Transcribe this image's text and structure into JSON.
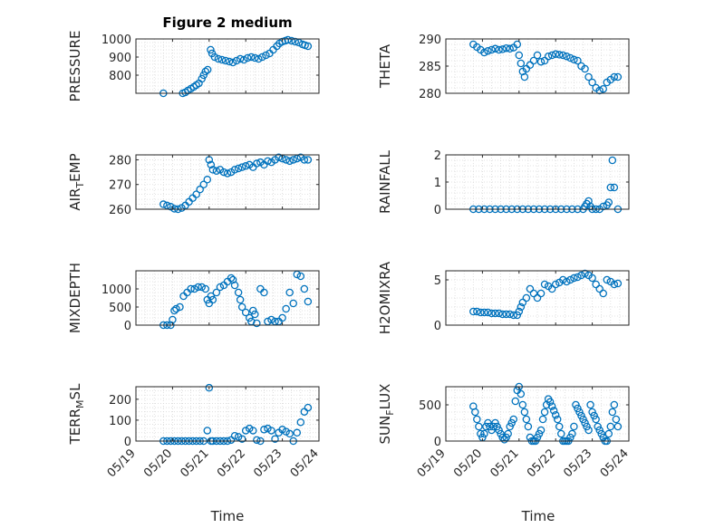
{
  "chart_data": {
    "title": "Figure 2 medium",
    "type": "scatter",
    "marker": "open-circle",
    "series_color": "#0072BD",
    "grid": "minor-dotted",
    "x_tick_labels": [
      "05/19",
      "05/20",
      "05/21",
      "05/22",
      "05/23",
      "05/24"
    ],
    "x_ticks_days": [
      0,
      1,
      2,
      3,
      4,
      5
    ],
    "xlabel": "Time",
    "panels": [
      {
        "id": "pressure",
        "ylabel": "PRESSURE",
        "ylim": [
          700,
          1000
        ],
        "yticks": [
          800,
          900,
          1000
        ],
        "x": [
          0.75,
          0.82,
          0.9,
          0.98,
          1.05,
          1.12,
          1.2,
          1.28,
          1.35,
          1.42,
          1.5,
          1.58,
          1.65,
          1.72,
          1.8,
          1.85,
          1.9,
          1.96,
          2.04,
          2.08,
          2.15,
          2.25,
          2.35,
          2.45,
          2.55,
          2.65,
          2.75,
          2.85,
          2.95,
          3.05,
          3.15,
          3.25,
          3.35,
          3.45,
          3.55,
          3.65,
          3.75,
          3.85,
          3.92,
          4.0,
          4.08,
          4.15,
          4.25,
          4.35,
          4.45,
          4.55,
          4.62,
          4.7
        ],
        "y": [
          700,
          698,
          697,
          695,
          693,
          692,
          693,
          700,
          705,
          715,
          725,
          735,
          745,
          755,
          780,
          800,
          820,
          830,
          940,
          920,
          900,
          890,
          885,
          880,
          875,
          870,
          880,
          890,
          885,
          895,
          900,
          895,
          890,
          900,
          910,
          920,
          940,
          960,
          975,
          985,
          990,
          995,
          990,
          985,
          980,
          970,
          965,
          960
        ]
      },
      {
        "id": "theta",
        "ylabel": "THETA",
        "ylim": [
          280,
          290
        ],
        "yticks": [
          280,
          285,
          290
        ],
        "x": [
          0.75,
          0.85,
          0.95,
          1.05,
          1.15,
          1.25,
          1.35,
          1.45,
          1.55,
          1.65,
          1.75,
          1.85,
          1.95,
          2.0,
          2.05,
          2.1,
          2.15,
          2.2,
          2.3,
          2.4,
          2.5,
          2.6,
          2.7,
          2.8,
          2.9,
          3.0,
          3.1,
          3.2,
          3.3,
          3.4,
          3.5,
          3.6,
          3.7,
          3.8,
          3.9,
          4.0,
          4.1,
          4.2,
          4.3,
          4.4,
          4.5,
          4.6,
          4.7
        ],
        "y": [
          289,
          288.5,
          288,
          287.5,
          287.8,
          288,
          288.2,
          288,
          288.1,
          288.3,
          288.2,
          288.4,
          289,
          287,
          285.5,
          284,
          283,
          284.5,
          285.2,
          286,
          287,
          285.8,
          286,
          286.8,
          287,
          287.2,
          287.1,
          287,
          286.8,
          286.5,
          286.2,
          286,
          285,
          284.5,
          283,
          282,
          281,
          280.5,
          280.8,
          282,
          282.5,
          283,
          283
        ]
      },
      {
        "id": "air_temp",
        "ylabel_main": "AIR",
        "ylabel_sub": "T",
        "ylabel_tail": "EMP",
        "ylim": [
          260,
          282
        ],
        "yticks": [
          260,
          270,
          280
        ],
        "x": [
          0.75,
          0.85,
          0.95,
          1.05,
          1.15,
          1.25,
          1.35,
          1.45,
          1.55,
          1.65,
          1.75,
          1.85,
          1.95,
          2.0,
          2.05,
          2.1,
          2.2,
          2.3,
          2.4,
          2.5,
          2.6,
          2.7,
          2.8,
          2.9,
          3.0,
          3.1,
          3.2,
          3.3,
          3.4,
          3.5,
          3.6,
          3.7,
          3.8,
          3.9,
          4.0,
          4.1,
          4.2,
          4.3,
          4.4,
          4.5,
          4.6,
          4.7
        ],
        "y": [
          262,
          261.5,
          261,
          260.2,
          260,
          260.5,
          261.5,
          263,
          264.5,
          266,
          268,
          270,
          272,
          280,
          278,
          276,
          275.5,
          276,
          275,
          274.5,
          275,
          276,
          276.5,
          277,
          277.5,
          278,
          277,
          278.5,
          279,
          278,
          279.5,
          279,
          280,
          281,
          280.5,
          280,
          279.5,
          280,
          280.5,
          281,
          280,
          280
        ]
      },
      {
        "id": "rainfall",
        "ylabel": "RAINFALL",
        "ylim": [
          0,
          2
        ],
        "yticks": [
          0,
          1,
          2
        ],
        "x": [
          0.75,
          0.9,
          1.05,
          1.2,
          1.35,
          1.5,
          1.65,
          1.8,
          1.95,
          2.1,
          2.25,
          2.4,
          2.55,
          2.7,
          2.85,
          3.0,
          3.15,
          3.3,
          3.45,
          3.6,
          3.75,
          3.8,
          3.85,
          3.9,
          3.95,
          4.0,
          4.1,
          4.2,
          4.3,
          4.4,
          4.45,
          4.5,
          4.55,
          4.6,
          4.7
        ],
        "y": [
          0,
          0,
          0,
          0,
          0,
          0,
          0,
          0,
          0,
          0,
          0,
          0,
          0,
          0,
          0,
          0,
          0,
          0,
          0,
          0,
          0,
          0.1,
          0.2,
          0.3,
          0.1,
          0,
          0,
          0,
          0.1,
          0.15,
          0.25,
          0.8,
          1.8,
          0.8,
          0
        ]
      },
      {
        "id": "mixdepth",
        "ylabel": "MIXDEPTH",
        "ylim": [
          0,
          1500
        ],
        "yticks": [
          0,
          500,
          1000
        ],
        "x": [
          0.75,
          0.85,
          0.95,
          1.0,
          1.05,
          1.1,
          1.2,
          1.3,
          1.4,
          1.5,
          1.6,
          1.7,
          1.8,
          1.9,
          1.95,
          2.0,
          2.05,
          2.1,
          2.2,
          2.3,
          2.4,
          2.5,
          2.6,
          2.65,
          2.7,
          2.8,
          2.85,
          2.9,
          3.0,
          3.1,
          3.15,
          3.2,
          3.25,
          3.3,
          3.4,
          3.5,
          3.6,
          3.7,
          3.8,
          3.9,
          4.0,
          4.1,
          4.2,
          4.3,
          4.4,
          4.5,
          4.6,
          4.7
        ],
        "y": [
          0,
          0,
          0,
          150,
          400,
          450,
          500,
          800,
          900,
          1000,
          1000,
          1050,
          1050,
          1000,
          700,
          600,
          800,
          700,
          900,
          1050,
          1100,
          1200,
          1300,
          1250,
          1100,
          900,
          700,
          500,
          350,
          200,
          100,
          400,
          300,
          50,
          1000,
          900,
          100,
          150,
          100,
          100,
          200,
          450,
          900,
          600,
          1400,
          1350,
          1000,
          650
        ]
      },
      {
        "id": "h2omixra",
        "ylabel": "H2OMIXRA",
        "ylim": [
          0,
          6
        ],
        "yticks": [
          0,
          5
        ],
        "x": [
          0.75,
          0.85,
          0.95,
          1.05,
          1.15,
          1.25,
          1.35,
          1.45,
          1.55,
          1.65,
          1.75,
          1.85,
          1.95,
          2.0,
          2.05,
          2.1,
          2.2,
          2.3,
          2.4,
          2.5,
          2.6,
          2.7,
          2.8,
          2.9,
          3.0,
          3.1,
          3.2,
          3.3,
          3.4,
          3.5,
          3.6,
          3.7,
          3.8,
          3.9,
          4.0,
          4.1,
          4.2,
          4.3,
          4.4,
          4.5,
          4.6,
          4.7
        ],
        "y": [
          1.5,
          1.5,
          1.4,
          1.4,
          1.4,
          1.3,
          1.3,
          1.3,
          1.2,
          1.2,
          1.2,
          1.1,
          1.1,
          1.5,
          2.0,
          2.5,
          3.0,
          4.0,
          3.5,
          3.0,
          3.5,
          4.5,
          4.3,
          4.0,
          4.5,
          4.7,
          5.0,
          4.8,
          5.0,
          5.2,
          5.3,
          5.5,
          5.7,
          5.5,
          5.2,
          4.5,
          4.0,
          3.5,
          5.0,
          4.8,
          4.5,
          4.6
        ]
      },
      {
        "id": "terr_msl",
        "ylabel_main": "TERR",
        "ylabel_sub": "M",
        "ylabel_tail": "SL",
        "ylim": [
          0,
          260
        ],
        "yticks": [
          0,
          100,
          200
        ],
        "x": [
          0.75,
          0.85,
          0.95,
          1.05,
          1.15,
          1.25,
          1.35,
          1.45,
          1.55,
          1.65,
          1.75,
          1.85,
          1.95,
          2.0,
          2.05,
          2.1,
          2.2,
          2.3,
          2.4,
          2.5,
          2.6,
          2.7,
          2.8,
          2.9,
          3.0,
          3.1,
          3.2,
          3.3,
          3.4,
          3.5,
          3.6,
          3.7,
          3.8,
          3.9,
          4.0,
          4.1,
          4.2,
          4.3,
          4.4,
          4.5,
          4.6,
          4.7
        ],
        "y": [
          0,
          0,
          0,
          0,
          0,
          0,
          0,
          0,
          0,
          0,
          0,
          0,
          50,
          255,
          0,
          0,
          0,
          0,
          0,
          0,
          5,
          25,
          20,
          10,
          50,
          60,
          50,
          5,
          0,
          55,
          60,
          50,
          10,
          40,
          55,
          45,
          35,
          0,
          40,
          90,
          140,
          160
        ]
      },
      {
        "id": "sun_flux",
        "ylabel_main": "SUN",
        "ylabel_sub": "F",
        "ylabel_tail": "LUX",
        "ylim": [
          0,
          750
        ],
        "yticks": [
          0,
          500
        ],
        "x": [
          0.75,
          0.8,
          0.85,
          0.9,
          0.95,
          1.0,
          1.05,
          1.1,
          1.15,
          1.2,
          1.25,
          1.3,
          1.35,
          1.4,
          1.45,
          1.5,
          1.55,
          1.6,
          1.65,
          1.7,
          1.75,
          1.8,
          1.85,
          1.9,
          1.95,
          2.0,
          2.05,
          2.1,
          2.15,
          2.2,
          2.25,
          2.3,
          2.35,
          2.4,
          2.45,
          2.5,
          2.55,
          2.6,
          2.65,
          2.7,
          2.75,
          2.8,
          2.85,
          2.9,
          2.95,
          3.0,
          3.05,
          3.1,
          3.15,
          3.2,
          3.25,
          3.3,
          3.35,
          3.4,
          3.45,
          3.5,
          3.55,
          3.6,
          3.65,
          3.7,
          3.75,
          3.8,
          3.85,
          3.9,
          3.95,
          4.0,
          4.05,
          4.1,
          4.15,
          4.2,
          4.25,
          4.3,
          4.35,
          4.4,
          4.45,
          4.5,
          4.55,
          4.6,
          4.65,
          4.7
        ],
        "y": [
          480,
          400,
          300,
          200,
          100,
          50,
          100,
          200,
          250,
          200,
          150,
          200,
          250,
          200,
          150,
          100,
          50,
          20,
          50,
          100,
          200,
          250,
          300,
          550,
          700,
          750,
          650,
          500,
          400,
          300,
          200,
          50,
          0,
          0,
          0,
          50,
          100,
          150,
          300,
          400,
          500,
          580,
          540,
          480,
          420,
          360,
          300,
          200,
          100,
          0,
          0,
          0,
          0,
          50,
          100,
          200,
          500,
          450,
          400,
          350,
          300,
          250,
          200,
          150,
          500,
          400,
          350,
          300,
          200,
          150,
          100,
          50,
          0,
          0,
          100,
          200,
          400,
          500,
          300,
          200
        ]
      }
    ]
  }
}
